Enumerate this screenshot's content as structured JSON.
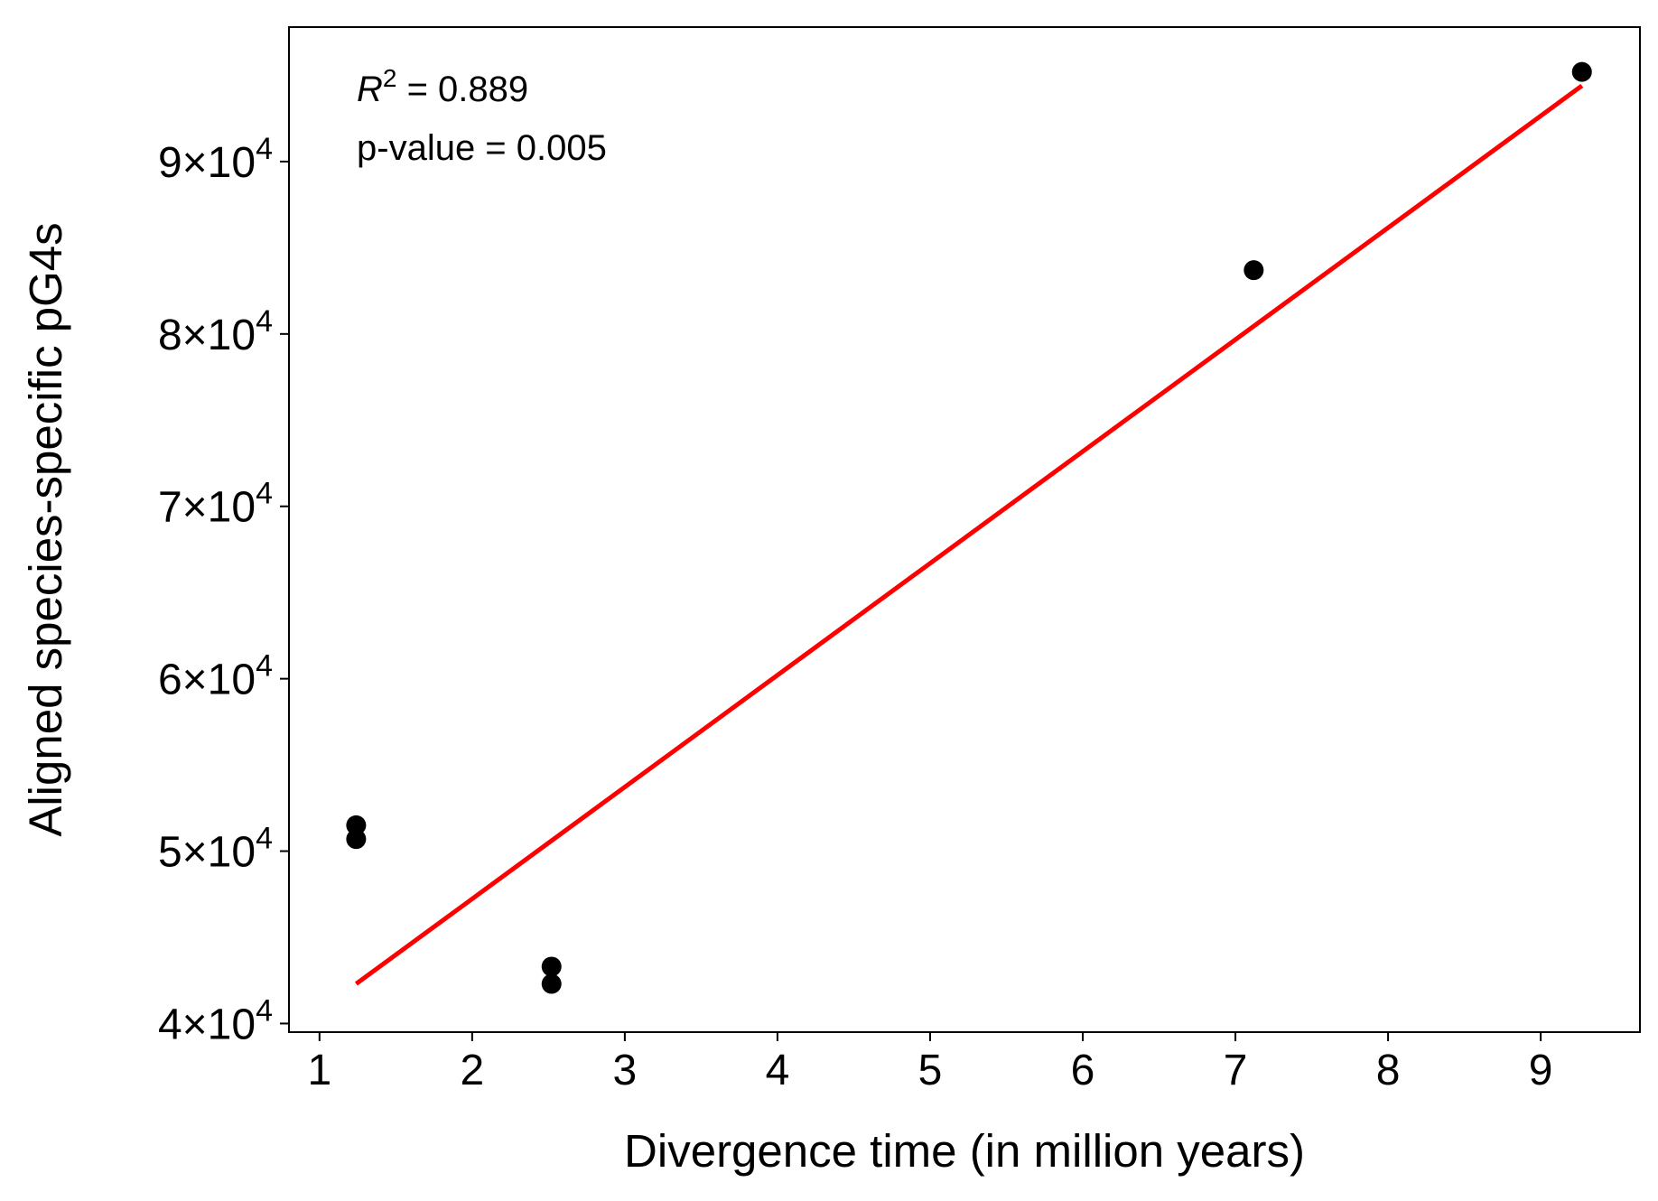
{
  "chart_data": {
    "type": "scatter",
    "title": "",
    "xlabel": "Divergence time (in million years)",
    "ylabel": "Aligned species-specific pG4s",
    "xlim": [
      0.8,
      9.65
    ],
    "ylim": [
      39500,
      97800
    ],
    "x_ticks": [
      {
        "value": 1,
        "label": "1"
      },
      {
        "value": 2,
        "label": "2"
      },
      {
        "value": 3,
        "label": "3"
      },
      {
        "value": 4,
        "label": "4"
      },
      {
        "value": 5,
        "label": "5"
      },
      {
        "value": 6,
        "label": "6"
      },
      {
        "value": 7,
        "label": "7"
      },
      {
        "value": 8,
        "label": "8"
      },
      {
        "value": 9,
        "label": "9"
      }
    ],
    "y_ticks": [
      {
        "value": 40000,
        "mantissa": "4",
        "times": "×",
        "base": "10",
        "exponent": "4"
      },
      {
        "value": 50000,
        "mantissa": "5",
        "times": "×",
        "base": "10",
        "exponent": "4"
      },
      {
        "value": 60000,
        "mantissa": "6",
        "times": "×",
        "base": "10",
        "exponent": "4"
      },
      {
        "value": 70000,
        "mantissa": "7",
        "times": "×",
        "base": "10",
        "exponent": "4"
      },
      {
        "value": 80000,
        "mantissa": "8",
        "times": "×",
        "base": "10",
        "exponent": "4"
      },
      {
        "value": 90000,
        "mantissa": "9",
        "times": "×",
        "base": "10",
        "exponent": "4"
      }
    ],
    "points": [
      {
        "x": 1.24,
        "y": 51500
      },
      {
        "x": 1.24,
        "y": 50700
      },
      {
        "x": 2.52,
        "y": 43300
      },
      {
        "x": 2.52,
        "y": 42300
      },
      {
        "x": 7.12,
        "y": 83700
      },
      {
        "x": 9.27,
        "y": 95200
      }
    ],
    "fit_line": {
      "x": [
        1.24,
        9.27
      ],
      "y": [
        42300,
        94400
      ]
    },
    "annotations": {
      "r2_symbol": "R",
      "r2_exponent": "2",
      "r2_value": " = 0.889",
      "p_value": "p-value = 0.005"
    },
    "grid": false,
    "legend": "none",
    "colors": {
      "points": "#000000",
      "fit_line": "#ff0000",
      "axes": "#000000"
    }
  }
}
